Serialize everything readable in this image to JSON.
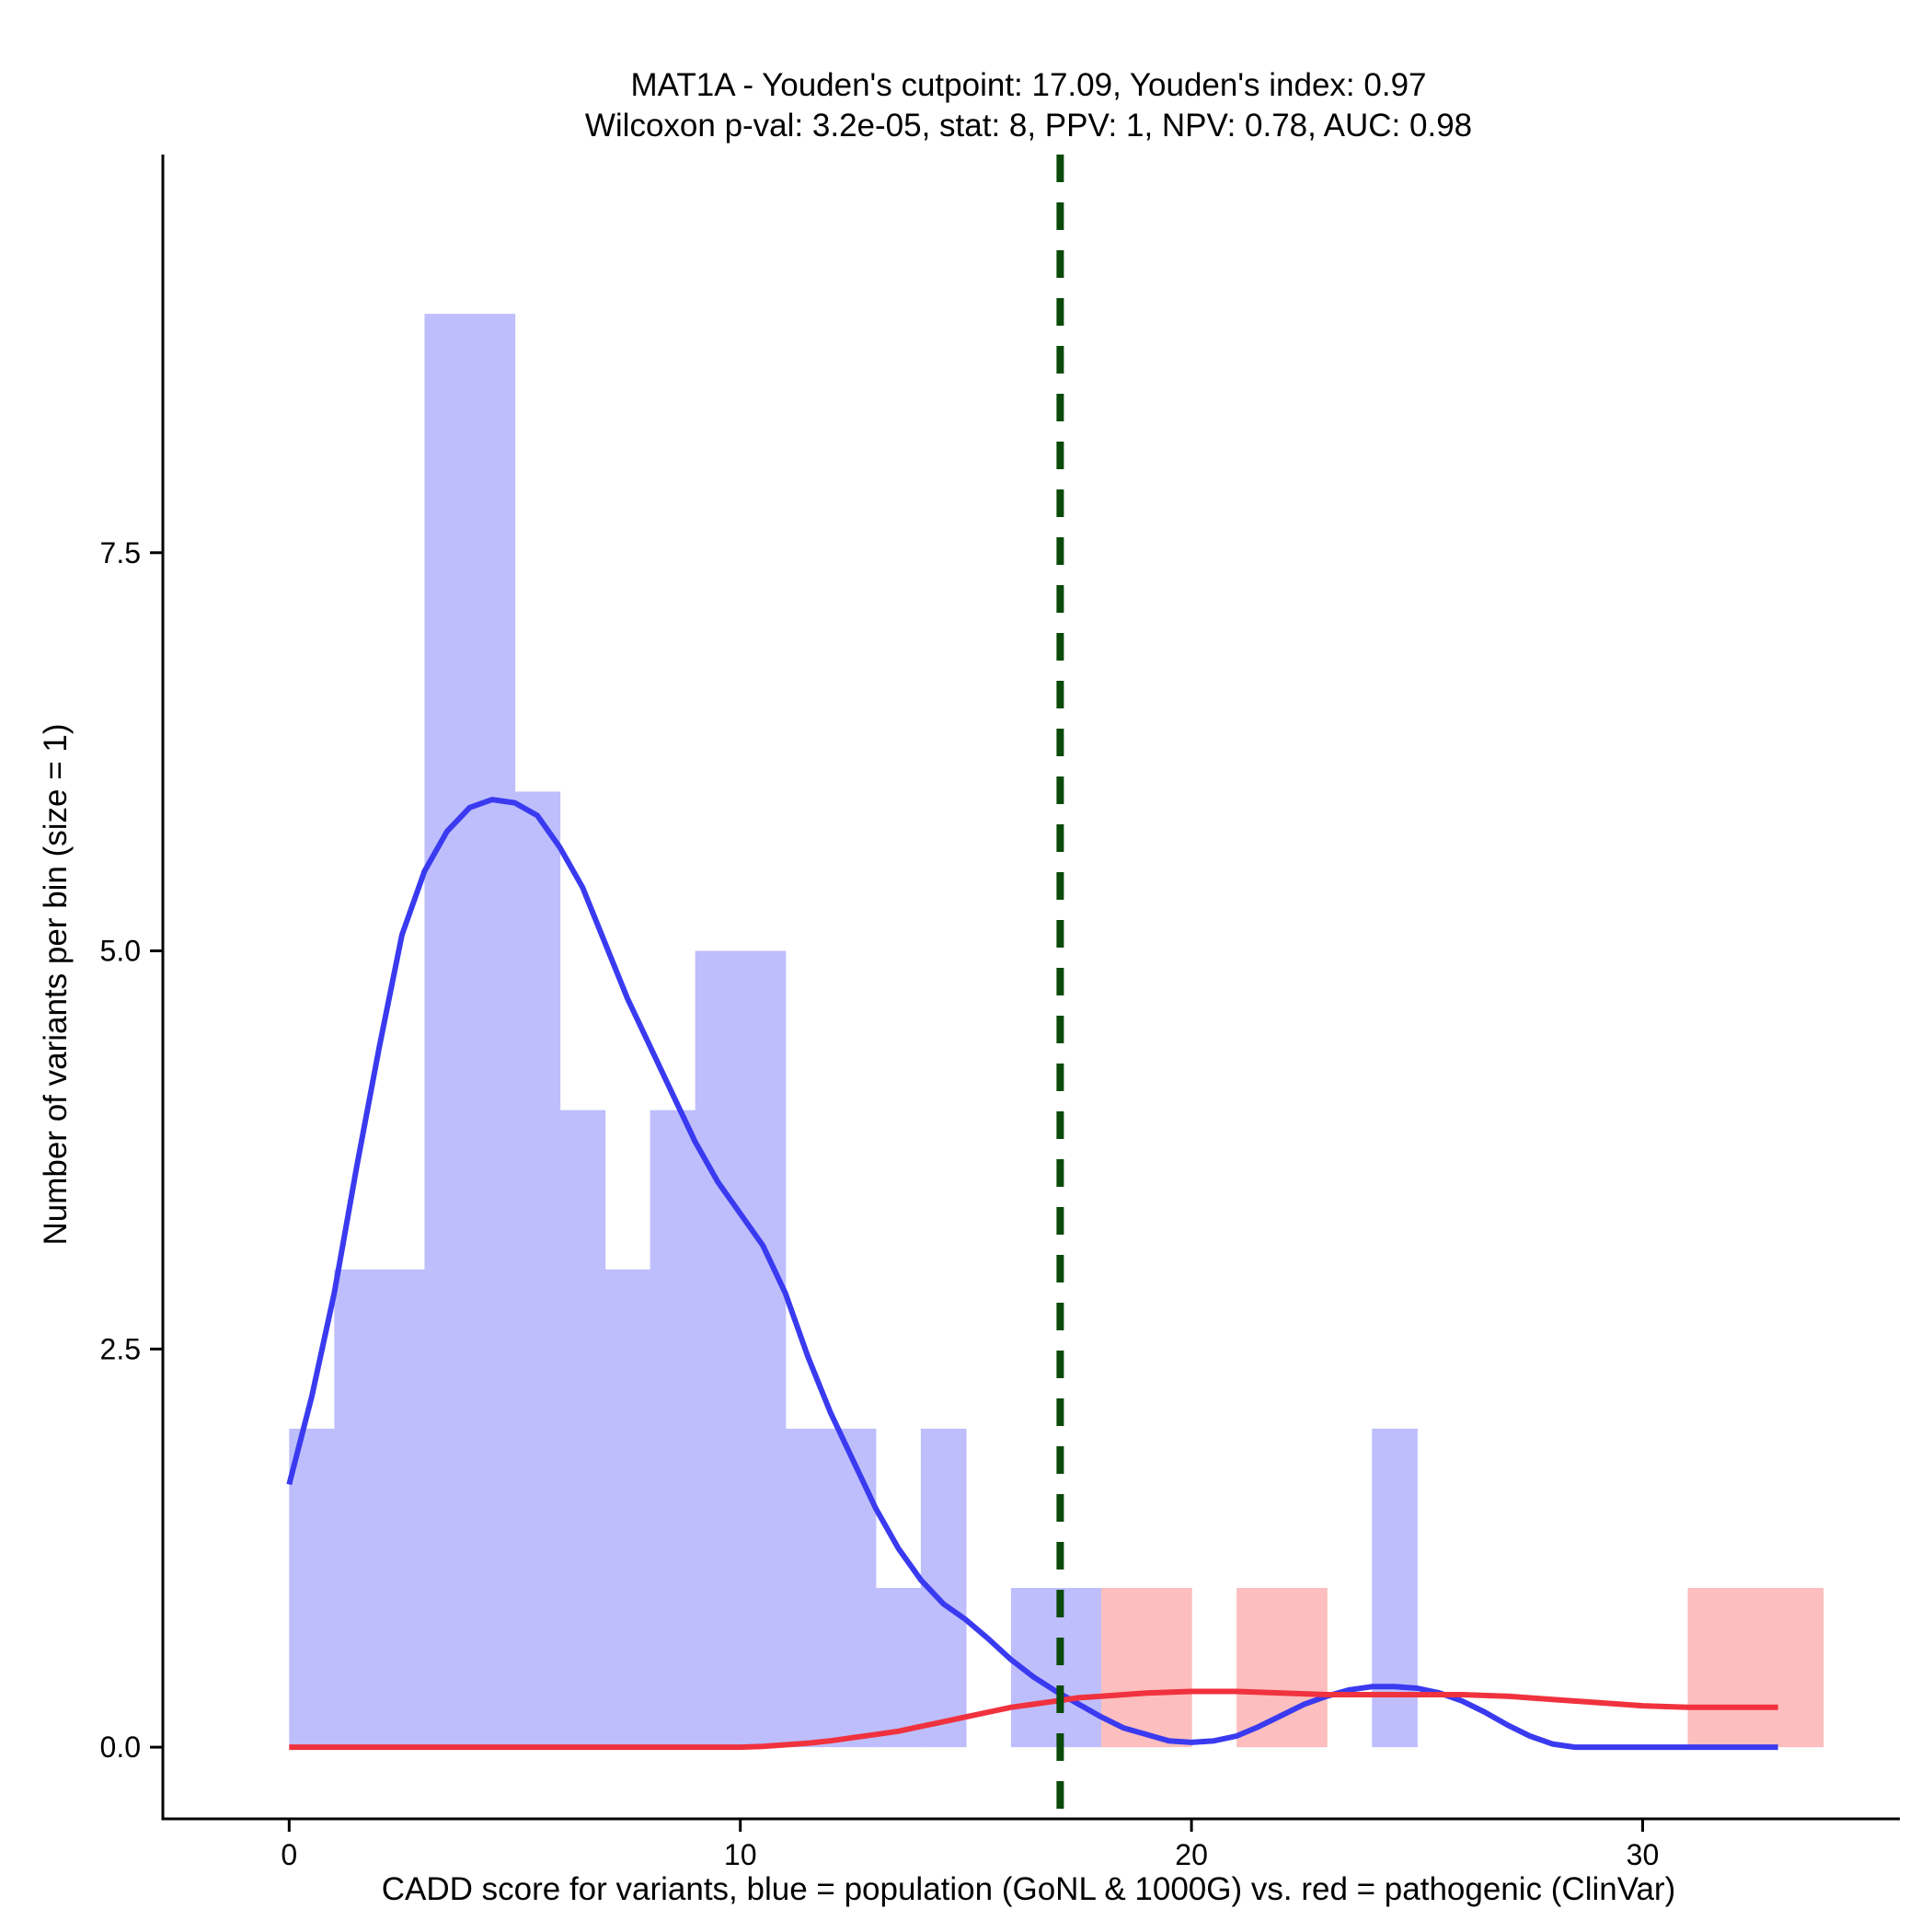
{
  "chart_data": {
    "type": "bar",
    "title_line1": "MAT1A - Youden's cutpoint: 17.09, Youden's index: 0.97",
    "title_line2": "Wilcoxon p-val: 3.2e-05, stat: 8, PPV: 1, NPV: 0.78, AUC: 0.98",
    "xlabel": "CADD score for variants, blue = population (GoNL & 1000G) vs. red = pathogenic (ClinVar)",
    "ylabel": "Number of variants per bin (size = 1)",
    "xlim": [
      -2.8,
      35.7
    ],
    "ylim": [
      -0.45,
      10.0
    ],
    "x_ticks": [
      0,
      10,
      20,
      30
    ],
    "x_tick_labels": [
      "0",
      "10",
      "20",
      "30"
    ],
    "y_ticks": [
      0,
      2.5,
      5,
      7.5
    ],
    "y_tick_labels": [
      "0.0",
      "2.5",
      "5.0",
      "7.5"
    ],
    "grid": false,
    "bin_size": 1,
    "cutpoint": 17.09,
    "colors": {
      "population_bar": "#bebefc",
      "pathogenic_bar": "#fcbebe",
      "population_line": "#3a3af0",
      "pathogenic_line": "#f0323e",
      "cutpoint_line": "#0a4a0a"
    },
    "series": [
      {
        "group": "population",
        "bins": [
          {
            "x0": 0,
            "x1": 1,
            "count": 2
          },
          {
            "x0": 1,
            "x1": 2,
            "count": 3
          },
          {
            "x0": 2,
            "x1": 3,
            "count": 3
          },
          {
            "x0": 3,
            "x1": 4,
            "count": 9
          },
          {
            "x0": 4,
            "x1": 5,
            "count": 9
          },
          {
            "x0": 5,
            "x1": 6,
            "count": 6
          },
          {
            "x0": 6,
            "x1": 7,
            "count": 4
          },
          {
            "x0": 7,
            "x1": 8,
            "count": 3
          },
          {
            "x0": 8,
            "x1": 9,
            "count": 4
          },
          {
            "x0": 9,
            "x1": 10,
            "count": 5
          },
          {
            "x0": 10,
            "x1": 11,
            "count": 5
          },
          {
            "x0": 11,
            "x1": 12,
            "count": 2
          },
          {
            "x0": 12,
            "x1": 13,
            "count": 2
          },
          {
            "x0": 13,
            "x1": 14,
            "count": 1
          },
          {
            "x0": 14,
            "x1": 15,
            "count": 2
          },
          {
            "x0": 16,
            "x1": 17,
            "count": 1
          },
          {
            "x0": 17,
            "x1": 18,
            "count": 1
          },
          {
            "x0": 24,
            "x1": 25,
            "count": 2
          }
        ],
        "density_curve": [
          [
            0,
            1.65
          ],
          [
            0.5,
            2.2
          ],
          [
            1,
            2.85
          ],
          [
            1.5,
            3.65
          ],
          [
            2,
            4.4
          ],
          [
            2.5,
            5.1
          ],
          [
            3,
            5.5
          ],
          [
            3.5,
            5.75
          ],
          [
            4,
            5.9
          ],
          [
            4.5,
            5.95
          ],
          [
            5,
            5.93
          ],
          [
            5.5,
            5.85
          ],
          [
            6,
            5.65
          ],
          [
            6.5,
            5.4
          ],
          [
            7,
            5.05
          ],
          [
            7.5,
            4.7
          ],
          [
            8,
            4.4
          ],
          [
            8.5,
            4.1
          ],
          [
            9,
            3.8
          ],
          [
            9.5,
            3.55
          ],
          [
            10,
            3.35
          ],
          [
            10.5,
            3.15
          ],
          [
            11,
            2.85
          ],
          [
            11.5,
            2.45
          ],
          [
            12,
            2.1
          ],
          [
            12.5,
            1.8
          ],
          [
            13,
            1.5
          ],
          [
            13.5,
            1.25
          ],
          [
            14,
            1.05
          ],
          [
            14.5,
            0.9
          ],
          [
            15,
            0.8
          ],
          [
            15.5,
            0.68
          ],
          [
            16,
            0.55
          ],
          [
            16.5,
            0.44
          ],
          [
            17,
            0.35
          ],
          [
            17.5,
            0.27
          ],
          [
            18,
            0.19
          ],
          [
            18.5,
            0.12
          ],
          [
            19,
            0.08
          ],
          [
            19.5,
            0.04
          ],
          [
            20,
            0.03
          ],
          [
            20.5,
            0.04
          ],
          [
            21,
            0.07
          ],
          [
            21.5,
            0.13
          ],
          [
            22,
            0.2
          ],
          [
            22.5,
            0.27
          ],
          [
            23,
            0.32
          ],
          [
            23.5,
            0.36
          ],
          [
            24,
            0.38
          ],
          [
            24.5,
            0.38
          ],
          [
            25,
            0.37
          ],
          [
            25.5,
            0.34
          ],
          [
            26,
            0.29
          ],
          [
            26.5,
            0.22
          ],
          [
            27,
            0.14
          ],
          [
            27.5,
            0.07
          ],
          [
            28,
            0.02
          ],
          [
            28.5,
            0.0
          ],
          [
            29,
            0.0
          ],
          [
            30,
            0.0
          ],
          [
            31,
            0.0
          ],
          [
            32,
            0.0
          ],
          [
            33,
            0.0
          ]
        ]
      },
      {
        "group": "pathogenic",
        "bins": [
          {
            "x0": 18,
            "x1": 19,
            "count": 1
          },
          {
            "x0": 19,
            "x1": 20,
            "count": 1
          },
          {
            "x0": 21,
            "x1": 22,
            "count": 1
          },
          {
            "x0": 22,
            "x1": 23,
            "count": 1
          },
          {
            "x0": 31,
            "x1": 32,
            "count": 1
          },
          {
            "x0": 32,
            "x1": 33,
            "count": 1
          },
          {
            "x0": 33,
            "x1": 34,
            "count": 1
          }
        ],
        "density_curve": [
          [
            0,
            0.0
          ],
          [
            2,
            0.0
          ],
          [
            4,
            0.0
          ],
          [
            6,
            0.0
          ],
          [
            8,
            0.0
          ],
          [
            10,
            0.0
          ],
          [
            10.5,
            0.005
          ],
          [
            11,
            0.015
          ],
          [
            11.5,
            0.025
          ],
          [
            12,
            0.04
          ],
          [
            12.5,
            0.06
          ],
          [
            13,
            0.08
          ],
          [
            13.5,
            0.1
          ],
          [
            14,
            0.13
          ],
          [
            14.5,
            0.16
          ],
          [
            15,
            0.19
          ],
          [
            15.5,
            0.22
          ],
          [
            16,
            0.25
          ],
          [
            16.5,
            0.27
          ],
          [
            17,
            0.29
          ],
          [
            17.5,
            0.31
          ],
          [
            18,
            0.32
          ],
          [
            18.5,
            0.33
          ],
          [
            19,
            0.34
          ],
          [
            19.5,
            0.345
          ],
          [
            20,
            0.35
          ],
          [
            21,
            0.35
          ],
          [
            22,
            0.34
          ],
          [
            23,
            0.33
          ],
          [
            24,
            0.33
          ],
          [
            25,
            0.33
          ],
          [
            26,
            0.33
          ],
          [
            27,
            0.32
          ],
          [
            28,
            0.3
          ],
          [
            29,
            0.28
          ],
          [
            30,
            0.26
          ],
          [
            31,
            0.25
          ],
          [
            32,
            0.25
          ],
          [
            33,
            0.25
          ]
        ]
      }
    ]
  }
}
